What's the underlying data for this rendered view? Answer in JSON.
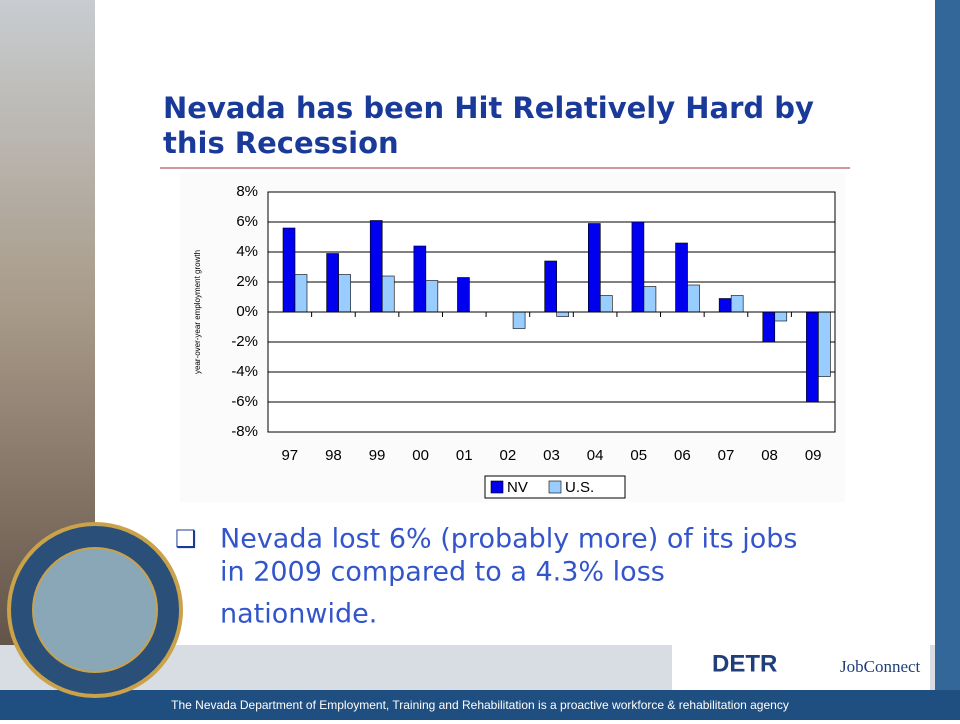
{
  "title": "Nevada has been Hit Relatively Hard by this Recession",
  "chart_data": {
    "type": "bar",
    "y_label": "year-over-year employment growth",
    "categories": [
      "97",
      "98",
      "99",
      "00",
      "01",
      "02",
      "03",
      "04",
      "05",
      "06",
      "07",
      "08",
      "09"
    ],
    "series": [
      {
        "name": "NV",
        "color": "#0000ee",
        "values": [
          5.6,
          3.9,
          6.1,
          4.4,
          2.3,
          0,
          3.4,
          5.9,
          6.0,
          4.6,
          0.9,
          -2.0,
          -6.0
        ]
      },
      {
        "name": "U.S.",
        "color": "#99ccff",
        "values": [
          2.5,
          2.5,
          2.4,
          2.1,
          0,
          -1.1,
          -0.3,
          1.1,
          1.7,
          1.8,
          1.1,
          -0.6,
          -4.3
        ]
      }
    ],
    "ylim": [
      -8,
      8
    ],
    "yticks": [
      {
        "value": -8,
        "label": "-8%"
      },
      {
        "value": -6,
        "label": "-6%"
      },
      {
        "value": -4,
        "label": "-4%"
      },
      {
        "value": -2,
        "label": "-2%"
      },
      {
        "value": 0,
        "label": "0%"
      },
      {
        "value": 2,
        "label": "2%"
      },
      {
        "value": 4,
        "label": "4%"
      },
      {
        "value": 6,
        "label": "6%"
      },
      {
        "value": 8,
        "label": "8%"
      }
    ],
    "grid": true,
    "legend": "bottom"
  },
  "bullet": [
    "Nevada lost 6% (probably more) of its jobs",
    "in 2009 compared to a 4.3% loss",
    "nationwide."
  ],
  "logos": [
    "DETR",
    "JobConnect"
  ],
  "footer": "The Nevada Department of Employment, Training and Rehabilitation is a proactive workforce & rehabilitation agency"
}
